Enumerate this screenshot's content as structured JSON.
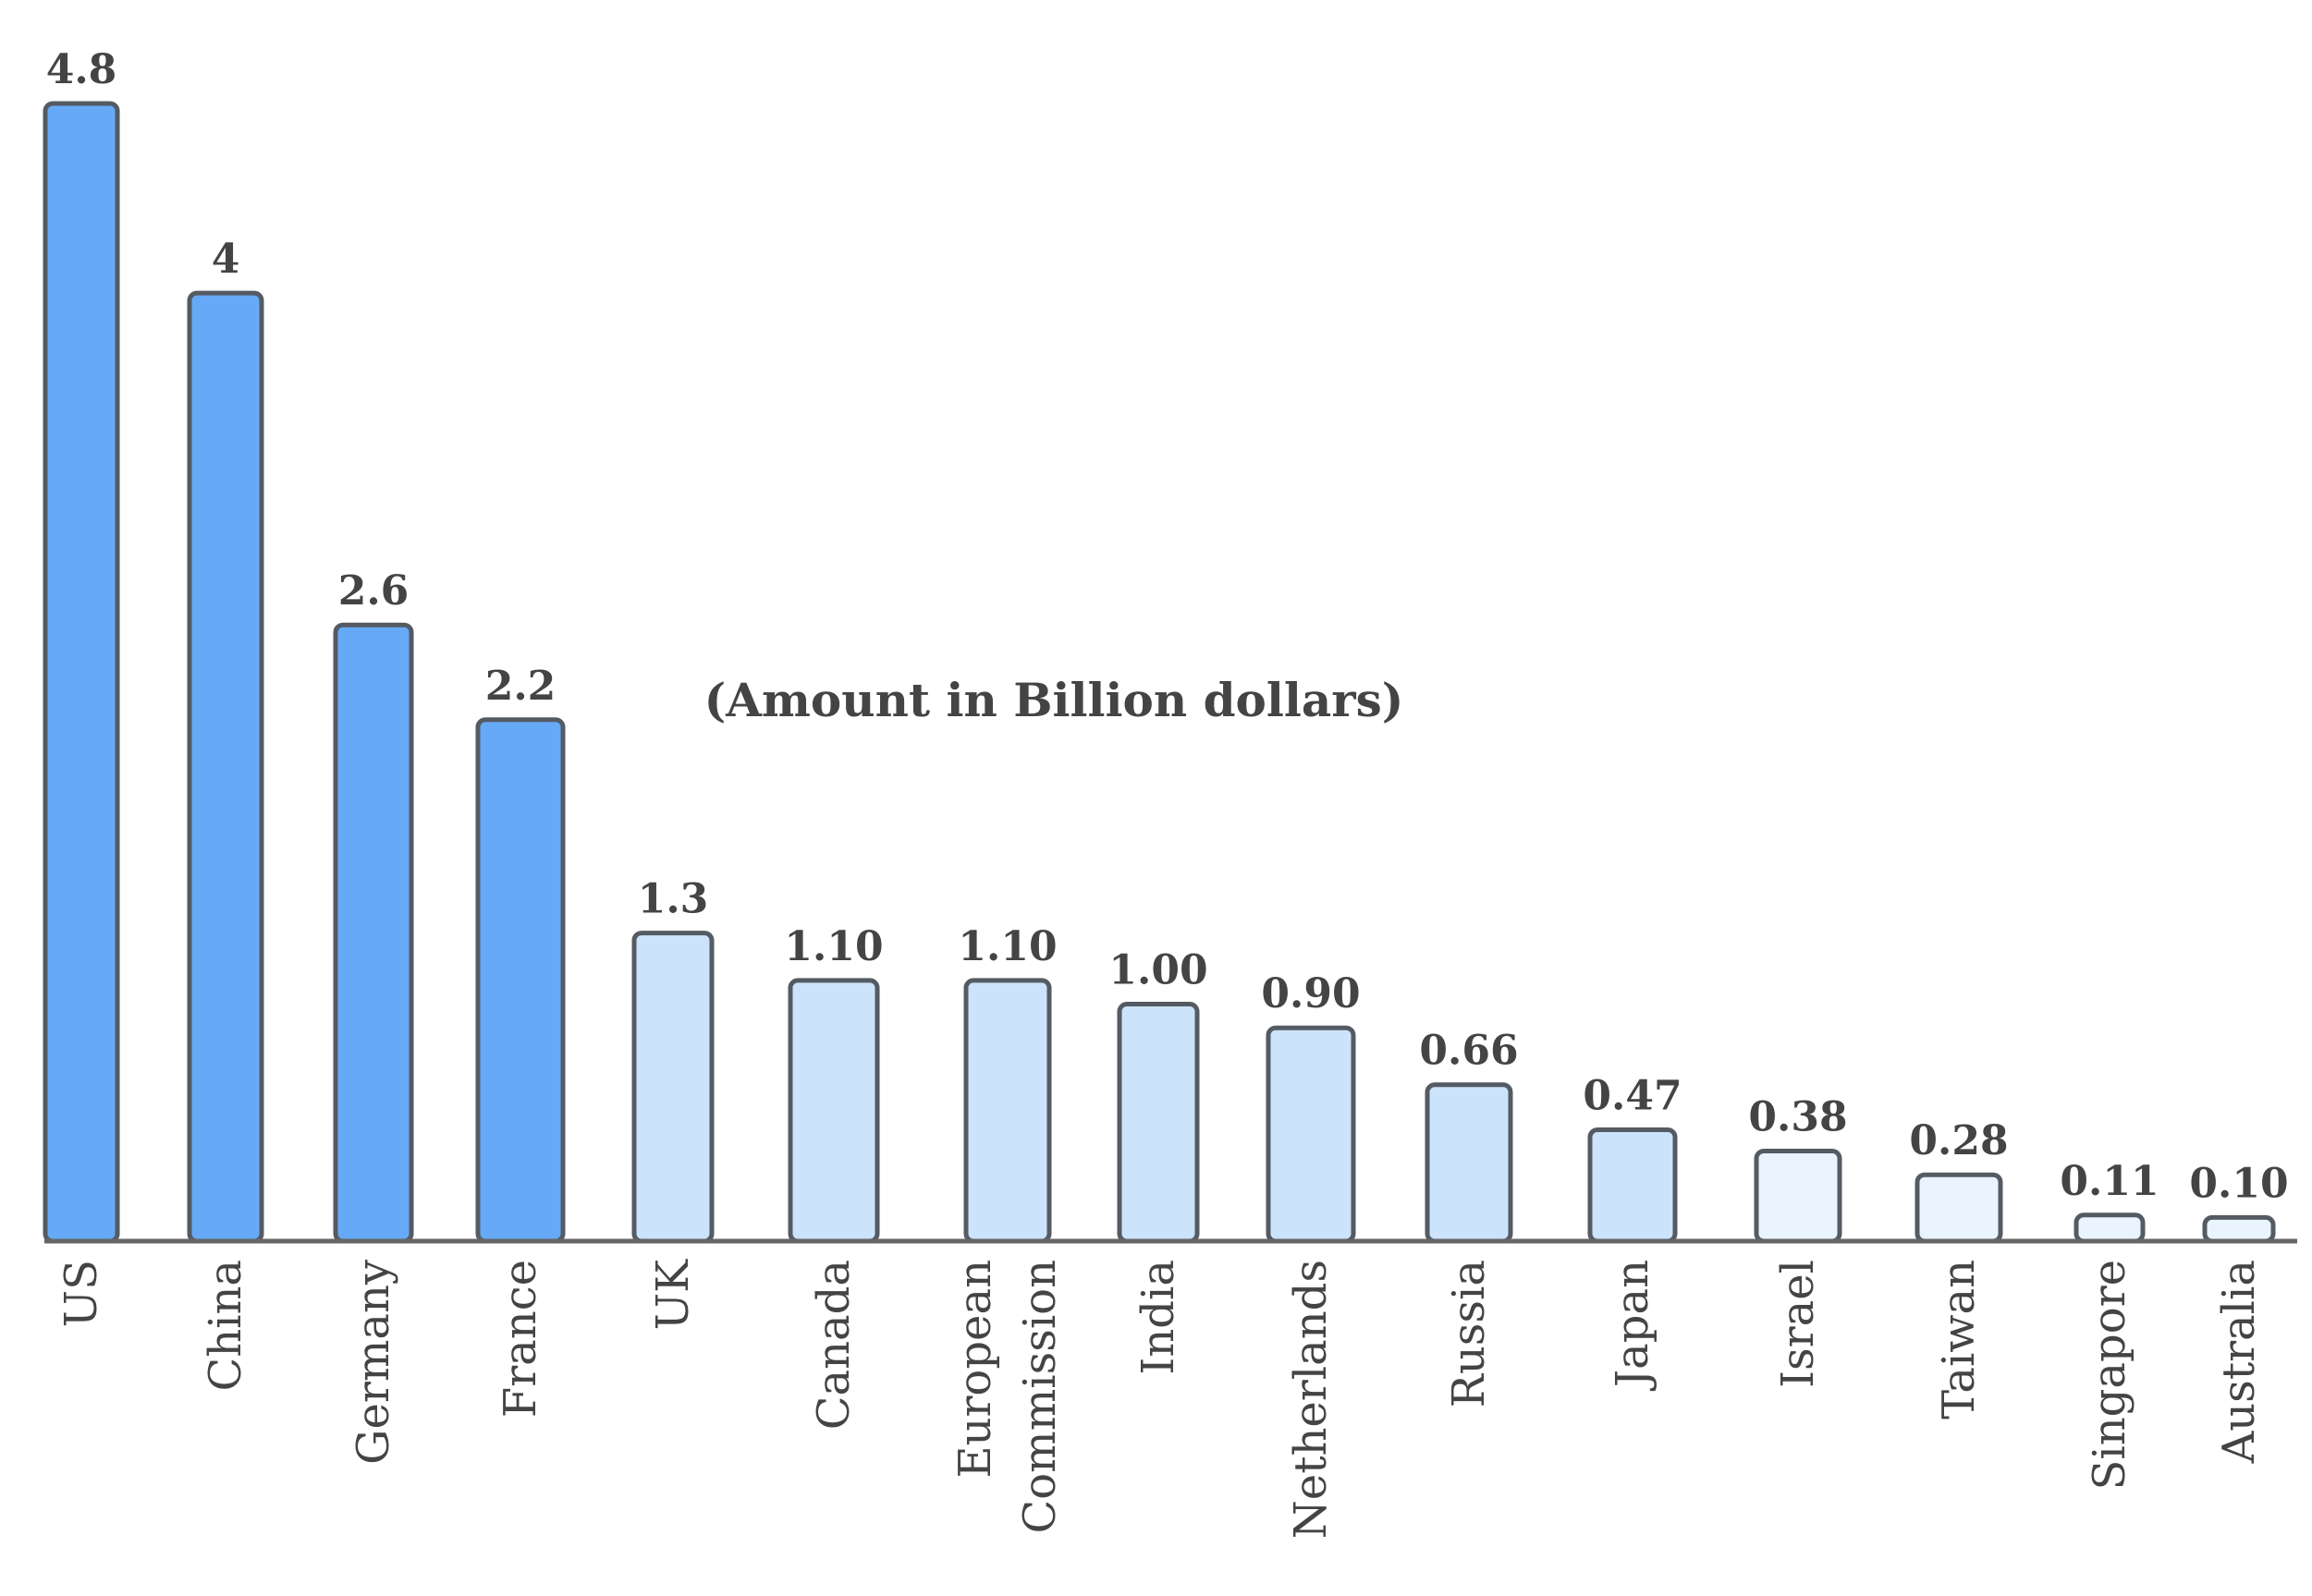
{
  "chart_data": {
    "type": "bar",
    "subtitle": "(Amount in Billion dollars)",
    "categories": [
      [
        "US"
      ],
      [
        "China"
      ],
      [
        "Germany"
      ],
      [
        "France"
      ],
      [
        "UK"
      ],
      [
        "Canada"
      ],
      [
        "European",
        "Commission"
      ],
      [
        "India"
      ],
      [
        "Netherlands"
      ],
      [
        "Russia"
      ],
      [
        "Japan"
      ],
      [
        "Israel"
      ],
      [
        "Taiwan"
      ],
      [
        "Singapore"
      ],
      [
        "Australia"
      ]
    ],
    "values": [
      4.8,
      4,
      2.6,
      2.2,
      1.3,
      1.1,
      1.1,
      1.0,
      0.9,
      0.66,
      0.47,
      0.38,
      0.28,
      0.11,
      0.1
    ],
    "value_labels": [
      "4.8",
      "4",
      "2.6",
      "2.2",
      "1.3",
      "1.10",
      "1.10",
      "1.00",
      "0.90",
      "0.66",
      "0.47",
      "0.38",
      "0.28",
      "0.11",
      "0.10"
    ],
    "ylim": [
      0,
      4.8
    ],
    "grid": false,
    "colors": {
      "dark": "#66aaf7",
      "medium": "#cce3fc",
      "light": "#e9f4ff",
      "outline": "#555b63",
      "text": "#444444"
    },
    "bar_shades": [
      "dark",
      "dark",
      "dark",
      "dark",
      "medium",
      "medium",
      "medium",
      "medium",
      "medium",
      "medium",
      "medium",
      "light",
      "light",
      "light",
      "light"
    ]
  }
}
